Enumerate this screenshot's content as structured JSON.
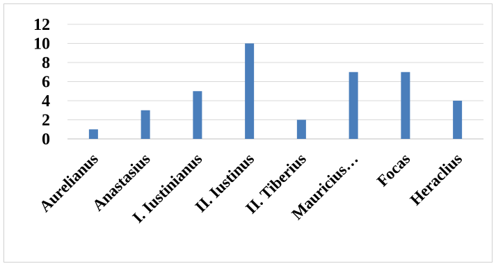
{
  "chart_data": {
    "type": "bar",
    "categories": [
      "Aurelianus",
      "Anastasius",
      "I. Iustinianus",
      "II. Iustinus",
      "II. Tiberius",
      "Mauricius…",
      "Focas",
      "Heraclius"
    ],
    "values": [
      1,
      3,
      5,
      10,
      2,
      7,
      7,
      4
    ],
    "y_ticks": [
      "0",
      "2",
      "4",
      "6",
      "8",
      "10",
      "12"
    ],
    "ylim": [
      0,
      12
    ],
    "grid": true,
    "legend": "none",
    "colors": {
      "bar": "#4a7ebb",
      "grid": "#d9d9d9",
      "axis": "#bfbfbf"
    }
  }
}
